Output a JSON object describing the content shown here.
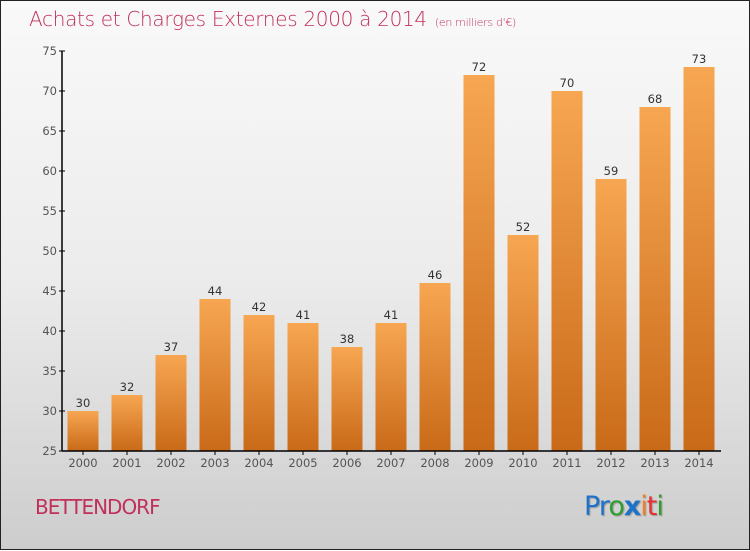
{
  "header": {
    "title": "Achats et Charges Externes 2000 à 2014",
    "subtitle": "(en milliers d'€)"
  },
  "footer": {
    "town": "BETTENDORF",
    "logo": {
      "letters": [
        "P",
        "r",
        "o",
        "x",
        "i",
        "t",
        "i"
      ],
      "colors": [
        "#1e73c8",
        "#1e73c8",
        "#2f9e2f",
        "#1e73c8",
        "#f08020",
        "#e83030",
        "#2f9e2f"
      ]
    }
  },
  "colors": {
    "bar_top": "#f7a652",
    "bar_bottom": "#c96a18",
    "title": "#c0305a"
  },
  "chart_data": {
    "type": "bar",
    "title": "Achats et Charges Externes 2000 à 2014",
    "subtitle": "(en milliers d'€)",
    "xlabel": "",
    "ylabel": "",
    "categories": [
      "2000",
      "2001",
      "2002",
      "2003",
      "2004",
      "2005",
      "2006",
      "2007",
      "2008",
      "2009",
      "2010",
      "2011",
      "2012",
      "2013",
      "2014"
    ],
    "values": [
      30,
      32,
      37,
      44,
      42,
      41,
      38,
      41,
      46,
      72,
      52,
      70,
      59,
      68,
      73
    ],
    "ylim": [
      25,
      75
    ],
    "yticks": [
      25,
      30,
      35,
      40,
      45,
      50,
      55,
      60,
      65,
      70,
      75
    ],
    "grid": false,
    "legend": "none",
    "data_labels": true
  }
}
